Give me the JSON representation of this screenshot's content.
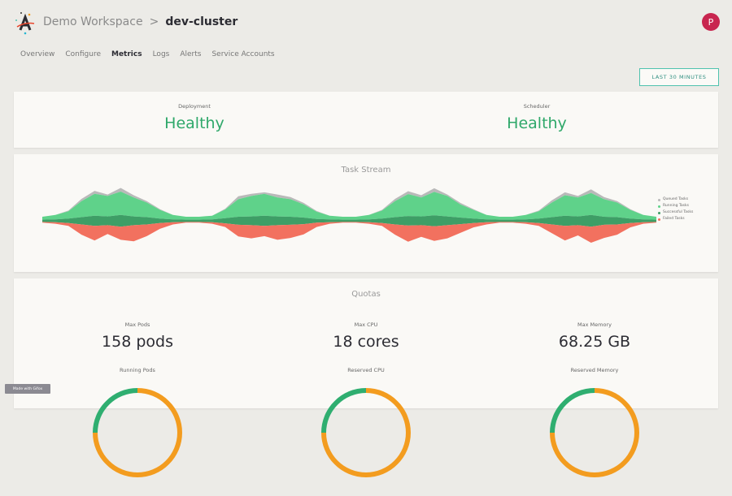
{
  "header": {
    "workspace": "Demo Workspace",
    "separator": ">",
    "cluster": "dev-cluster",
    "avatar_initial": "P",
    "avatar_color": "#c8254f"
  },
  "nav": {
    "items": [
      "Overview",
      "Configure",
      "Metrics",
      "Logs",
      "Alerts",
      "Service Accounts"
    ],
    "active": "Metrics"
  },
  "time_range": {
    "label": "LAST 30 MINUTES"
  },
  "status": {
    "deployment": {
      "label": "Deployment",
      "value": "Healthy"
    },
    "scheduler": {
      "label": "Scheduler",
      "value": "Healthy"
    }
  },
  "task_stream": {
    "title": "Task Stream",
    "legend": [
      "Queued Tasks",
      "Running Tasks",
      "Successful Tasks",
      "Failed Tasks"
    ],
    "colors": [
      "#b9b9b9",
      "#5fd28a",
      "#3e9e66",
      "#f2715f"
    ]
  },
  "chart_data": {
    "type": "area",
    "title": "Task Stream",
    "series": [
      {
        "name": "Queued Tasks",
        "values": [
          0,
          0,
          1,
          3,
          4,
          2,
          5,
          3,
          2,
          1,
          0,
          0,
          0,
          0,
          1,
          4,
          3,
          2,
          4,
          3,
          2,
          1,
          0,
          0,
          0,
          0,
          1,
          3,
          4,
          3,
          5,
          2,
          2,
          1,
          0,
          0,
          0,
          0,
          1,
          3,
          4,
          2,
          5,
          3,
          2,
          1,
          0,
          0
        ]
      },
      {
        "name": "Running Tasks",
        "values": [
          4,
          6,
          10,
          22,
          30,
          28,
          32,
          26,
          20,
          12,
          6,
          4,
          4,
          5,
          12,
          24,
          28,
          30,
          26,
          24,
          18,
          10,
          5,
          4,
          4,
          6,
          11,
          22,
          30,
          26,
          32,
          28,
          18,
          12,
          6,
          4,
          4,
          6,
          10,
          20,
          28,
          26,
          30,
          24,
          20,
          12,
          6,
          4
        ]
      },
      {
        "name": "Successful Tasks",
        "values": [
          3,
          4,
          6,
          10,
          14,
          12,
          16,
          12,
          10,
          6,
          4,
          3,
          3,
          4,
          7,
          11,
          12,
          14,
          12,
          11,
          9,
          5,
          4,
          3,
          3,
          4,
          6,
          10,
          13,
          12,
          15,
          12,
          9,
          6,
          4,
          3,
          3,
          4,
          6,
          10,
          14,
          12,
          16,
          11,
          10,
          6,
          4,
          3
        ]
      },
      {
        "name": "Failed Tasks",
        "values": [
          1,
          2,
          4,
          14,
          20,
          12,
          18,
          22,
          16,
          8,
          3,
          1,
          1,
          2,
          5,
          16,
          18,
          14,
          20,
          18,
          14,
          6,
          2,
          1,
          1,
          2,
          4,
          14,
          22,
          16,
          20,
          18,
          12,
          6,
          3,
          1,
          1,
          2,
          4,
          12,
          20,
          14,
          22,
          18,
          14,
          6,
          2,
          1
        ]
      }
    ]
  },
  "quotas": {
    "title": "Quotas",
    "items": [
      {
        "label": "Max Pods",
        "value": "158 pods",
        "sub_label": "Running Pods"
      },
      {
        "label": "Max CPU",
        "value": "18 cores",
        "sub_label": "Reserved CPU"
      },
      {
        "label": "Max Memory",
        "value": "68.25 GB",
        "sub_label": "Reserved Memory"
      }
    ]
  },
  "badge": {
    "label": "Made with Gifox"
  }
}
